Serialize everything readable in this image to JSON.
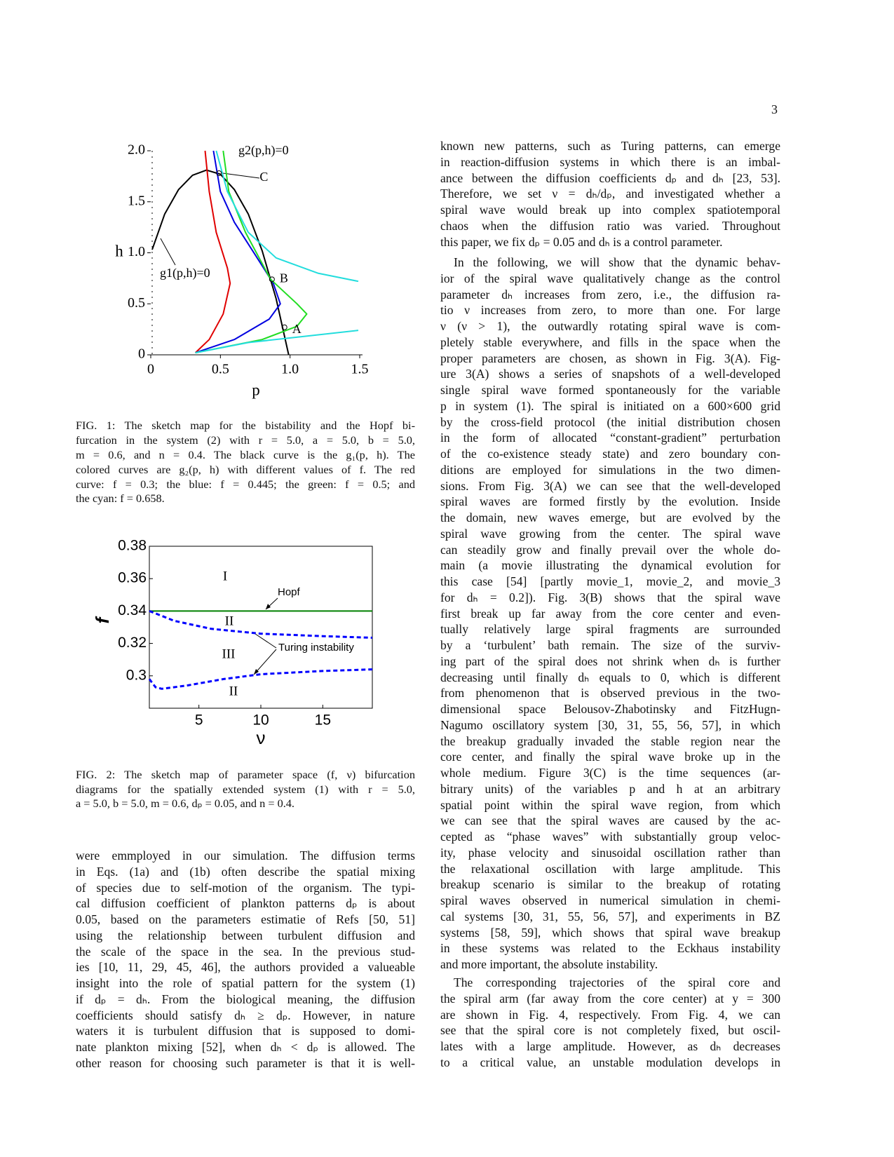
{
  "page_number": "3",
  "figure_1": {
    "plot": {
      "type": "line",
      "xlabel": "p",
      "ylabel": "h",
      "xlim": [
        0,
        1.5
      ],
      "ylim": [
        0,
        2
      ],
      "xticks": [
        0,
        0.5,
        {
          "value": 1,
          "label": "1.0"
        },
        1.5
      ],
      "yticks": [
        0,
        0.5,
        {
          "value": 1,
          "label": "1.0"
        },
        1.5,
        {
          "value": 2,
          "label": "2.0"
        }
      ],
      "curves": [
        {
          "color": "#000000",
          "x": [
            0.01,
            0.1,
            0.2,
            0.3,
            0.4,
            0.5,
            0.6,
            0.7,
            0.8,
            0.9,
            0.99
          ],
          "values": [
            1.03,
            1.38,
            1.62,
            1.76,
            1.81,
            1.77,
            1.62,
            1.38,
            1.02,
            0.55,
            0
          ]
        },
        {
          "color": "#e00000",
          "x": [
            0.39,
            0.42,
            0.47,
            0.55,
            0.57,
            0.52,
            0.42,
            0.32
          ],
          "values": [
            2.0,
            1.6,
            1.2,
            0.85,
            0.7,
            0.4,
            0.15,
            0.02
          ]
        },
        {
          "color": "#0000e0",
          "x": [
            0.45,
            0.5,
            0.6,
            0.75,
            0.88,
            0.93,
            0.85,
            0.6,
            0.32
          ],
          "values": [
            2.0,
            1.6,
            1.3,
            0.98,
            0.7,
            0.5,
            0.35,
            0.15,
            0.02
          ]
        },
        {
          "color": "#22dd22",
          "x": [
            0.52,
            0.56,
            0.68,
            0.86,
            1.05,
            1.12,
            1.05,
            0.8,
            0.32
          ],
          "values": [
            2.0,
            1.6,
            1.2,
            0.74,
            0.5,
            0.4,
            0.28,
            0.15,
            0.02
          ]
        },
        {
          "color": "#22dddd",
          "x": [
            0.47,
            0.55,
            0.7,
            0.9,
            1.2,
            1.49,
            null,
            0.32,
            0.7,
            1.1,
            1.49
          ],
          "values": [
            2.0,
            1.6,
            1.2,
            0.95,
            0.8,
            0.72,
            null,
            0.02,
            0.12,
            0.18,
            0.24
          ]
        }
      ],
      "points": [
        {
          "label": "C",
          "x": 0.49,
          "y": 1.78
        },
        {
          "label": "B",
          "x": 0.87,
          "y": 0.74
        },
        {
          "label": "A",
          "x": 0.96,
          "y": 0.27
        }
      ],
      "annotations": [
        "g2(p,h)=0",
        "g1(p,h)=0"
      ]
    },
    "caption": [
      "FIG. 1: The sketch map for the bistability and the Hopf bi-",
      "furcation in the system (2) with r = 5.0, a = 5.0, b = 5.0,",
      "m = 0.6, and n = 0.4. The black curve is the g₁(p, h). The",
      "colored curves are g₂(p, h) with different values of f. The red",
      "curve: f = 0.3; the blue: f = 0.445; the green: f = 0.5; and",
      "the cyan: f = 0.658."
    ]
  },
  "figure_2": {
    "plot": {
      "type": "line",
      "xlabel": "ν",
      "ylabel": "f",
      "xlim": [
        1,
        19
      ],
      "ylim": [
        0.28,
        0.38
      ],
      "xticks": [
        5,
        10,
        15
      ],
      "yticks": [
        0.3,
        0.32,
        0.34,
        0.36,
        0.38
      ],
      "curves": [
        {
          "color": "#008000",
          "dashed": false,
          "x": [
            1,
            19
          ],
          "values": [
            0.34,
            0.34
          ]
        },
        {
          "color": "#0000ff",
          "dashed": true,
          "x": [
            1,
            2,
            3,
            6,
            10,
            15,
            19
          ],
          "values": [
            0.34,
            0.337,
            0.334,
            0.329,
            0.326,
            0.3245,
            0.3235
          ]
        },
        {
          "color": "#0000ff",
          "dashed": true,
          "x": [
            1,
            1.5,
            2,
            4,
            7,
            10,
            15,
            19
          ],
          "values": [
            0.298,
            0.293,
            0.292,
            0.294,
            0.298,
            0.301,
            0.303,
            0.304
          ]
        }
      ],
      "regions": [
        "I",
        "II",
        "III",
        "II"
      ],
      "annotations": [
        "Hopf",
        "Turing instability"
      ]
    },
    "caption": [
      "FIG. 2: The sketch map of parameter space (f, ν) bifurcation",
      "diagrams for the spatially extended system (1) with r = 5.0,",
      "a = 5.0, b = 5.0, m = 0.6, dₚ = 0.05, and n = 0.4."
    ]
  },
  "left_text": {
    "paragraphs": [
      {
        "lines": [
          "were emmployed in our simulation. The diffusion terms",
          "in Eqs. (1a) and (1b) often describe the spatial mixing",
          "of species due to self-motion of the organism. The typi-",
          "cal diffusion coefficient of plankton patterns dₚ is about",
          "0.05, based on the parameters estimatie of Refs [50, 51]",
          "using the relationship between turbulent diffusion and",
          "the scale of the space in the sea. In the previous stud-",
          "ies [10, 11, 29, 45, 46], the authors provided a valueable",
          "insight into the role of spatial pattern for the system (1)",
          "if dₚ = dₕ. From the biological meaning, the diffusion",
          "coefficients should satisfy dₕ ≥ dₚ. However, in nature",
          "waters it is turbulent diffusion that is supposed to domi-",
          "nate plankton mixing [52], when dₕ < dₚ is allowed. The",
          "other reason for choosing such parameter is that it is well-"
        ]
      }
    ]
  },
  "right_text": {
    "paragraphs": [
      {
        "lines": [
          "known new patterns, such as Turing patterns, can emerge",
          "in reaction-diffusion systems in which there is an imbal-",
          "ance between the diffusion coefficients dₚ and dₕ [23, 53].",
          "Therefore, we set ν = dₕ/dₚ, and investigated whether a",
          "spiral wave would break up into complex spatiotemporal",
          "chaos when the diffusion ratio was varied. Throughout",
          "this paper, we fix dₚ = 0.05 and dₕ is a control parameter."
        ]
      },
      {
        "lines": [
          "In the following, we will show that the dynamic behav-",
          "ior of the spiral wave qualitatively change as the control",
          "parameter dₕ increases from zero, i.e., the diffusion ra-",
          "tio ν increases from zero, to more than one. For large",
          "ν (ν > 1), the outwardly rotating spiral wave is com-",
          "pletely stable everywhere, and fills in the space when the",
          "proper parameters are chosen, as shown in Fig. 3(A). Fig-",
          "ure 3(A) shows a series of snapshots of a well-developed",
          "single spiral wave formed spontaneously for the variable",
          "p in system (1). The spiral is initiated on a 600×600 grid",
          "by the cross-field protocol (the initial distribution chosen",
          "in the form of allocated “constant-gradient” perturbation",
          "of the co-existence steady state) and zero boundary con-",
          "ditions are employed for simulations in the two dimen-",
          "sions. From Fig. 3(A) we can see that the well-developed",
          "spiral waves are formed firstly by the evolution. Inside",
          "the domain, new waves emerge, but are evolved by the",
          "spiral wave growing from the center. The spiral wave",
          "can steadily grow and finally prevail over the whole do-",
          "main (a movie illustrating the dynamical evolution for",
          "this case [54] [partly movie_1, movie_2, and movie_3",
          "for dₕ = 0.2]). Fig. 3(B) shows that the spiral wave",
          "first break up far away from the core center and even-",
          "tually relatively large spiral fragments are surrounded",
          "by a ‘turbulent’ bath remain. The size of the surviv-",
          "ing part of the spiral does not shrink when dₕ is further",
          "decreasing until finally dₕ equals to 0, which is different",
          "from phenomenon that is observed previous in the two-",
          "dimensional space Belousov-Zhabotinsky and FitzHugn-",
          "Nagumo oscillatory system [30, 31, 55, 56, 57], in which",
          "the breakup gradually invaded the stable region near the",
          "core center, and finally the spiral wave broke up in the",
          "whole medium. Figure 3(C) is the time sequences (ar-",
          "bitrary units) of the variables p and h at an arbitrary",
          "spatial point within the spiral wave region, from which",
          "we can see that the spiral waves are caused by the ac-",
          "cepted as “phase waves” with substantially group veloc-",
          "ity, phase velocity and sinusoidal oscillation rather than",
          "the relaxational oscillation with large amplitude. This",
          "breakup scenario is similar to the breakup of rotating",
          "spiral waves observed in numerical simulation in chemi-",
          "cal systems [30, 31, 55, 56, 57], and experiments in BZ",
          "systems [58, 59], which shows that spiral wave breakup",
          "in these systems was related to the Eckhaus instability",
          "and more important, the absolute instability."
        ]
      },
      {
        "lines": [
          "The corresponding trajectories of the spiral core and",
          "the spiral arm (far away from the core center) at y = 300",
          "are shown in Fig. 4, respectively. From Fig. 4, we can",
          "see that the spiral core is not completely fixed, but oscil-",
          "lates with a large amplitude. However, as dₕ decreases",
          "to a critical value, an unstable modulation develops in"
        ]
      }
    ]
  }
}
